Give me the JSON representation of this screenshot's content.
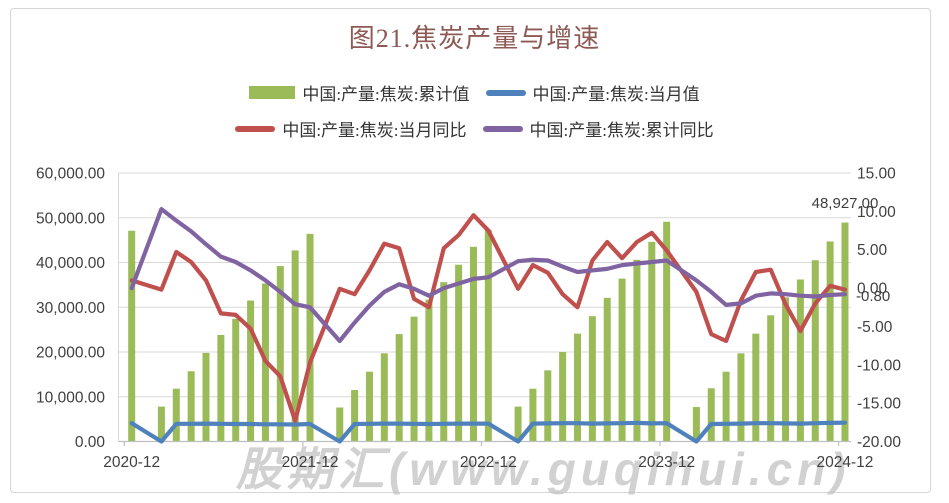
{
  "title": "图21.焦炭产量与增速",
  "watermark": "股期汇(www.guqihui.cn)",
  "data_labels": {
    "last_bar": "48,927.00",
    "last_cum_yoy": "-0.80"
  },
  "axis_left": {
    "labels": [
      "60,000.00",
      "50,000.00",
      "40,000.00",
      "30,000.00",
      "20,000.00",
      "10,000.00",
      "0.00"
    ],
    "values": [
      60000,
      50000,
      40000,
      30000,
      20000,
      10000,
      0
    ]
  },
  "axis_right": {
    "labels": [
      "15.00",
      "10.00",
      "5.00",
      "0.00",
      "-5.00",
      "-10.00",
      "-15.00",
      "-20.00"
    ],
    "values": [
      15,
      10,
      5,
      0,
      -5,
      -10,
      -15,
      -20
    ]
  },
  "x_axis": {
    "labels": [
      "2020-12",
      "2021-12",
      "2022-12",
      "2023-12",
      "2024-12"
    ],
    "month_indices": [
      0,
      12,
      24,
      36,
      48
    ]
  },
  "chart_data": {
    "type": "combo",
    "x": [
      "2020-12",
      "2021-01",
      "2021-02",
      "2021-03",
      "2021-04",
      "2021-05",
      "2021-06",
      "2021-07",
      "2021-08",
      "2021-09",
      "2021-10",
      "2021-11",
      "2021-12",
      "2022-01",
      "2022-02",
      "2022-03",
      "2022-04",
      "2022-05",
      "2022-06",
      "2022-07",
      "2022-08",
      "2022-09",
      "2022-10",
      "2022-11",
      "2022-12",
      "2023-01",
      "2023-02",
      "2023-03",
      "2023-04",
      "2023-05",
      "2023-06",
      "2023-07",
      "2023-08",
      "2023-09",
      "2023-10",
      "2023-11",
      "2023-12",
      "2024-01",
      "2024-02",
      "2024-03",
      "2024-04",
      "2024-05",
      "2024-06",
      "2024-07",
      "2024-08",
      "2024-09",
      "2024-10",
      "2024-11",
      "2024-12"
    ],
    "ylim_left": [
      0,
      60000
    ],
    "ylim_right": [
      -20,
      15
    ],
    "grid": true,
    "legend_position": "top",
    "series": [
      {
        "name": "中国:产量:焦炭:累计值",
        "type": "bar",
        "axis": "left",
        "color": "#9BBB59",
        "values": [
          47100,
          null,
          7800,
          11800,
          15700,
          19800,
          23800,
          27400,
          31500,
          35300,
          39200,
          42700,
          46400,
          null,
          7600,
          11500,
          15600,
          19700,
          24000,
          27900,
          31700,
          35600,
          39500,
          43500,
          47300,
          null,
          7800,
          11800,
          15900,
          20000,
          24100,
          28000,
          32100,
          36400,
          40600,
          44600,
          49100,
          null,
          7700,
          11900,
          15600,
          19700,
          24100,
          28200,
          32200,
          36200,
          40500,
          44700,
          48927
        ]
      },
      {
        "name": "中国:产量:焦炭:当月值",
        "type": "line",
        "axis": "left",
        "color": "#4F81BD",
        "values": [
          4100,
          null,
          0,
          3950,
          3950,
          4000,
          3950,
          3900,
          3900,
          3850,
          3850,
          3800,
          3900,
          null,
          0,
          3900,
          3950,
          4000,
          4000,
          3950,
          3900,
          3950,
          4000,
          4000,
          4000,
          null,
          0,
          4000,
          4050,
          4100,
          4100,
          4000,
          4050,
          4100,
          4150,
          4050,
          4100,
          null,
          0,
          3900,
          3950,
          4000,
          4100,
          4100,
          4050,
          4000,
          4100,
          4150,
          4200
        ]
      },
      {
        "name": "中国:产量:焦炭:当月同比",
        "type": "line",
        "axis": "right",
        "color": "#C0504D",
        "values": [
          1.0,
          null,
          -0.2,
          4.7,
          3.4,
          1.0,
          -3.3,
          -3.5,
          -5.3,
          -9.5,
          -11.5,
          -17.3,
          -9.7,
          null,
          -0.1,
          -0.8,
          2.3,
          5.8,
          5.2,
          -1.4,
          -2.5,
          5.2,
          6.9,
          9.5,
          7.5,
          null,
          -0.1,
          3.0,
          2.0,
          -0.8,
          -2.5,
          3.6,
          6.0,
          3.9,
          6.0,
          7.2,
          4.9,
          null,
          -0.5,
          -6.0,
          -6.9,
          -1.6,
          2.1,
          2.4,
          -2.1,
          -5.6,
          -2.0,
          0.3,
          -0.2
        ]
      },
      {
        "name": "中国:产量:焦炭:累计同比",
        "type": "line",
        "axis": "right",
        "color": "#8064A2",
        "values": [
          0.0,
          null,
          10.3,
          8.8,
          7.4,
          5.7,
          4.1,
          3.4,
          2.3,
          1.0,
          -0.5,
          -2.1,
          -2.5,
          null,
          -6.9,
          -4.5,
          -2.3,
          -0.5,
          0.5,
          -0.1,
          -1.0,
          0.0,
          0.6,
          1.2,
          1.4,
          null,
          3.5,
          3.7,
          3.6,
          2.8,
          2.1,
          2.3,
          2.5,
          3.0,
          3.2,
          3.4,
          3.6,
          null,
          1.0,
          -0.5,
          -2.2,
          -2.0,
          -1.0,
          -0.7,
          -0.8,
          -1.0,
          -1.1,
          -0.9,
          -0.8
        ]
      }
    ]
  }
}
